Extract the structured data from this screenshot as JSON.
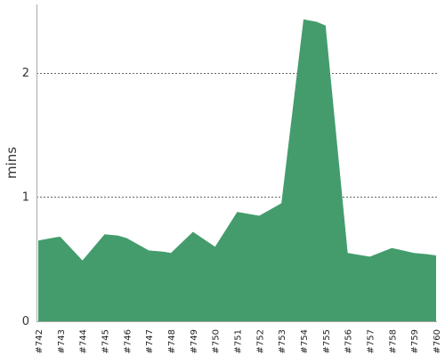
{
  "chart_data": {
    "type": "area",
    "title": "",
    "xlabel": "",
    "ylabel": "mins",
    "ylim": [
      0,
      2.55
    ],
    "yticks": [
      0,
      1,
      2
    ],
    "grid": true,
    "grid_style": "dashed-horizontal",
    "legend": false,
    "categories": [
      "#742",
      "#743",
      "#744",
      "#745",
      "#746",
      "#747",
      "#748",
      "#749",
      "#750",
      "#751",
      "#752",
      "#753",
      "#754",
      "#755",
      "#756",
      "#757",
      "#758",
      "#759",
      "#760"
    ],
    "x": [
      742,
      742.9,
      743,
      744,
      745,
      745.6,
      746,
      747,
      747.7,
      748,
      749,
      750,
      751,
      752,
      753,
      754,
      754.6,
      755,
      756,
      757,
      758,
      759,
      759.6,
      760
    ],
    "series": [
      {
        "color": "#449c6c",
        "values": [
          0.65,
          0.68,
          0.68,
          0.49,
          0.7,
          0.69,
          0.67,
          0.57,
          0.56,
          0.55,
          0.72,
          0.6,
          0.88,
          0.85,
          0.95,
          2.43,
          2.41,
          2.38,
          0.55,
          0.52,
          0.59,
          0.55,
          0.54,
          0.53
        ]
      }
    ]
  }
}
